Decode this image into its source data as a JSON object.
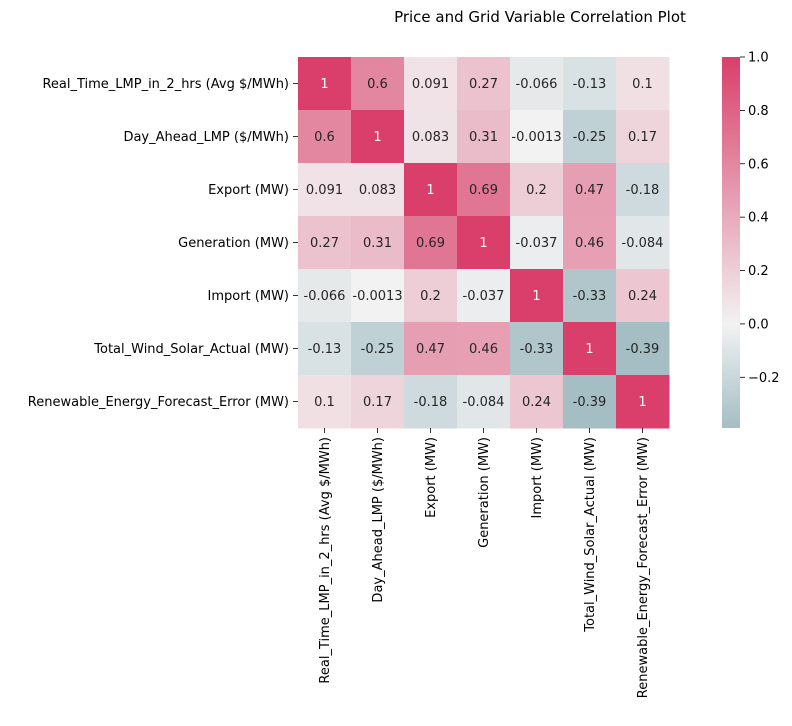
{
  "chart_data": {
    "type": "heatmap",
    "title": "Price and Grid Variable Correlation Plot",
    "xlabel": "",
    "ylabel": "",
    "rows": [
      "Real_Time_LMP_in_2_hrs (Avg $/MWh)",
      "Day_Ahead_LMP ($/MWh)",
      "Export (MW)",
      "Generation (MW)",
      "Import (MW)",
      "Total_Wind_Solar_Actual (MW)",
      "Renewable_Energy_Forecast_Error (MW)"
    ],
    "columns": [
      "Real_Time_LMP_in_2_hrs (Avg $/MWh)",
      "Day_Ahead_LMP ($/MWh)",
      "Export (MW)",
      "Generation (MW)",
      "Import (MW)",
      "Total_Wind_Solar_Actual (MW)",
      "Renewable_Energy_Forecast_Error (MW)"
    ],
    "values": [
      [
        1,
        0.6,
        0.091,
        0.27,
        -0.066,
        -0.13,
        0.1
      ],
      [
        0.6,
        1,
        0.083,
        0.31,
        -0.0013,
        -0.25,
        0.17
      ],
      [
        0.091,
        0.083,
        1,
        0.69,
        0.2,
        0.47,
        -0.18
      ],
      [
        0.27,
        0.31,
        0.69,
        1,
        -0.037,
        0.46,
        -0.084
      ],
      [
        -0.066,
        -0.0013,
        0.2,
        -0.037,
        1,
        -0.33,
        0.24
      ],
      [
        -0.13,
        -0.25,
        0.47,
        0.46,
        -0.33,
        1,
        -0.39
      ],
      [
        0.1,
        0.17,
        -0.18,
        -0.084,
        0.24,
        -0.39,
        1
      ]
    ],
    "labels": [
      [
        "1",
        "0.6",
        "0.091",
        "0.27",
        "-0.066",
        "-0.13",
        "0.1"
      ],
      [
        "0.6",
        "1",
        "0.083",
        "0.31",
        "-0.0013",
        "-0.25",
        "0.17"
      ],
      [
        "0.091",
        "0.083",
        "1",
        "0.69",
        "0.2",
        "0.47",
        "-0.18"
      ],
      [
        "0.27",
        "0.31",
        "0.69",
        "1",
        "-0.037",
        "0.46",
        "-0.084"
      ],
      [
        "-0.066",
        "-0.0013",
        "0.2",
        "-0.037",
        "1",
        "-0.33",
        "0.24"
      ],
      [
        "-0.13",
        "-0.25",
        "0.47",
        "0.46",
        "-0.33",
        "1",
        "-0.39"
      ],
      [
        "0.1",
        "0.17",
        "-0.18",
        "-0.084",
        "0.24",
        "-0.39",
        "1"
      ]
    ],
    "colorbar": {
      "vmin": -0.39,
      "vmax": 1.0,
      "ticks": [
        -0.2,
        0.0,
        0.2,
        0.4,
        0.6,
        0.8,
        1.0
      ],
      "tick_labels": [
        "−0.2",
        "0.0",
        "0.2",
        "0.4",
        "0.6",
        "0.8",
        "1.0"
      ],
      "color_low": "#a4bec4",
      "color_mid": "#f2f2f2",
      "color_high": "#d93f6a"
    },
    "text_colors": {
      "dark": "#262626",
      "light": "#ffffff"
    },
    "grid": false,
    "legend": "colorbar-right"
  }
}
